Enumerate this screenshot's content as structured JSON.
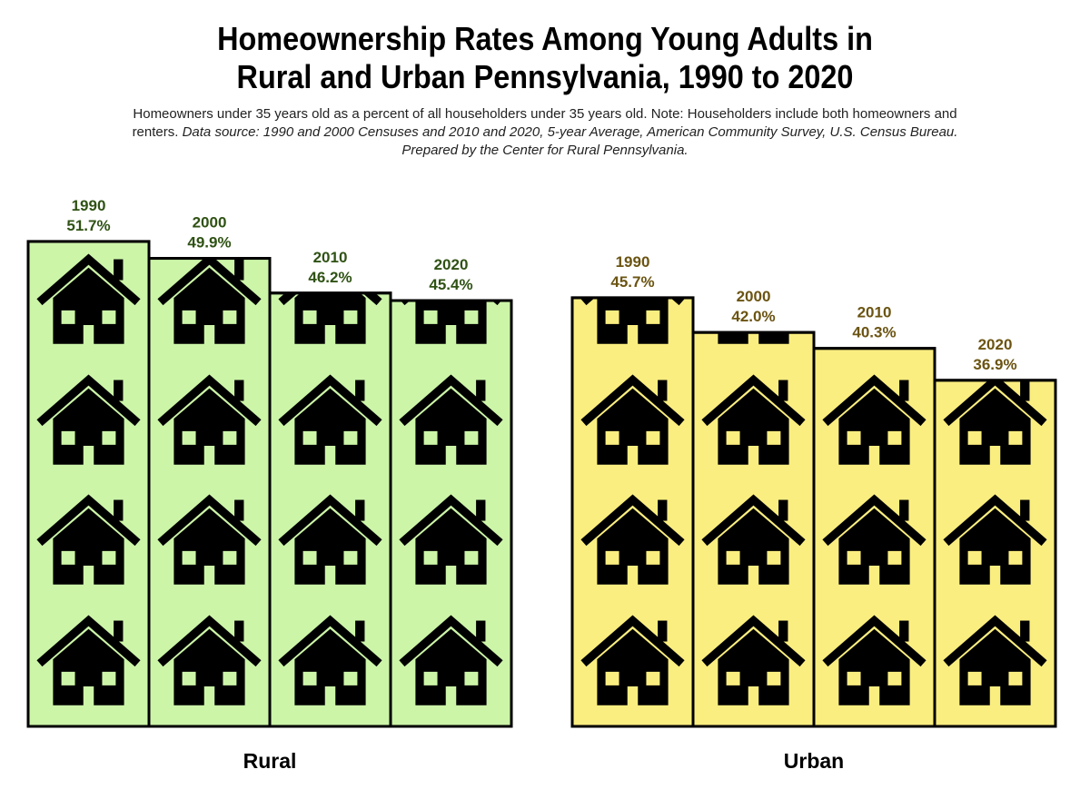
{
  "title_line1": "Homeownership Rates Among Young Adults in",
  "title_line2": "Rural and Urban Pennsylvania, 1990 to 2020",
  "subtitle_plain": "Homeowners under 35 years old as a percent of all householders under 35 years old. Note: Householders include both homeowners and renters.",
  "subtitle_italic": "Data source: 1990 and 2000 Censuses and 2010 and 2020, 5-year Average, American Community Survey, U.S. Census Bureau. Prepared by the Center for Rural Pennsylvania.",
  "colors": {
    "rural_fill": "#ccf5a8",
    "urban_fill": "#fbee80",
    "rural_label": "#2f5214",
    "urban_label": "#6b5412",
    "icon": "#000000"
  },
  "chart_data": {
    "type": "bar",
    "unit": "%",
    "icon": "house-icon",
    "groups": [
      {
        "name": "Rural",
        "categories": [
          "1990",
          "2000",
          "2010",
          "2020"
        ],
        "values": [
          51.7,
          49.9,
          46.2,
          45.4
        ],
        "value_labels": [
          "51.7%",
          "49.9%",
          "46.2%",
          "45.4%"
        ]
      },
      {
        "name": "Urban",
        "categories": [
          "1990",
          "2000",
          "2010",
          "2020"
        ],
        "values": [
          45.7,
          42.0,
          40.3,
          36.9
        ],
        "value_labels": [
          "45.7%",
          "42.0%",
          "40.3%",
          "36.9%"
        ]
      }
    ]
  }
}
